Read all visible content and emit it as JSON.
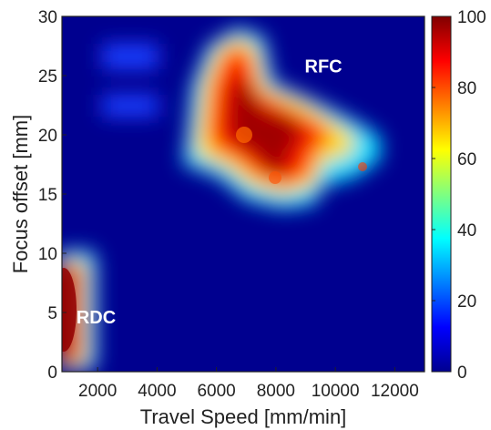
{
  "chart_data": {
    "type": "heatmap",
    "title": "",
    "xlabel": "Travel Speed [mm/min]",
    "ylabel": "Focus offset [mm]",
    "xlim": [
      800,
      13000
    ],
    "ylim": [
      0,
      30
    ],
    "xticks": [
      2000,
      4000,
      6000,
      8000,
      10000,
      12000
    ],
    "yticks": [
      0,
      5,
      10,
      15,
      20,
      25,
      30
    ],
    "colorbar": {
      "min": 0,
      "max": 100,
      "ticks": [
        0,
        20,
        40,
        60,
        80,
        100
      ]
    },
    "colormap": "jet",
    "grid": false,
    "annotations": [
      {
        "text": "RFC",
        "x": 9600,
        "y": 25.8
      },
      {
        "text": "RDC",
        "x": 1950,
        "y": 4.6
      }
    ],
    "regions": [
      {
        "label": "RDC",
        "peak": 100,
        "x": [
          800,
          1300
        ],
        "y": [
          0,
          9.5
        ]
      },
      {
        "label": "RFC",
        "peak": 100,
        "x": [
          4800,
          11300
        ],
        "y": [
          14.5,
          28.5
        ]
      },
      {
        "label": "",
        "peak": 15,
        "x": [
          3000,
          4800
        ],
        "y": [
          26,
          28
        ]
      },
      {
        "label": "",
        "peak": 15,
        "x": [
          3000,
          4800
        ],
        "y": [
          21.5,
          23.5
        ]
      }
    ]
  }
}
